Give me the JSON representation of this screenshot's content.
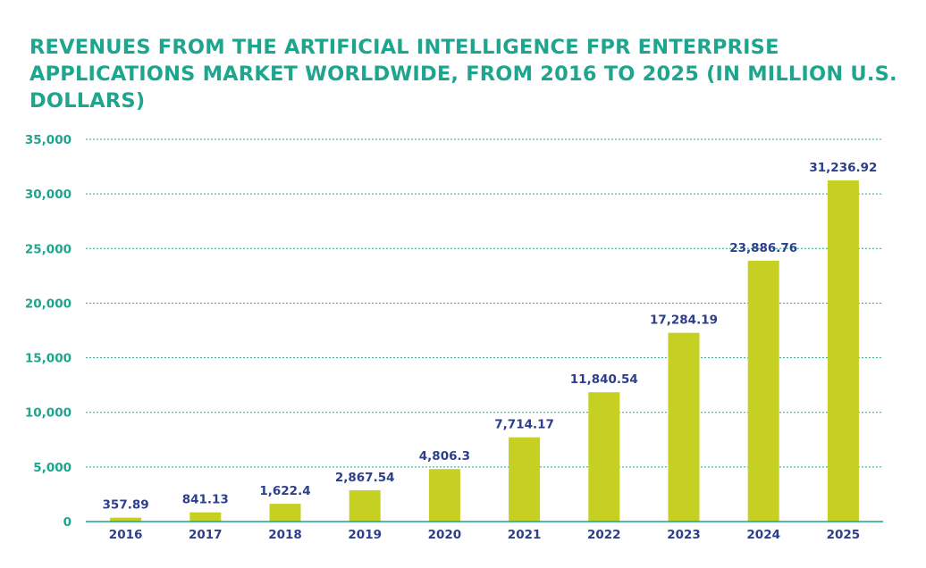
{
  "chart_data": {
    "type": "bar",
    "title": "REVENUES FROM THE ARTIFICIAL INTELLIGENCE FPR ENTERPRISE APPLICATIONS MARKET WORLDWIDE, FROM 2016 TO 2025 (IN MILLION U.S. DOLLARS)",
    "xlabel": "",
    "ylabel": "",
    "categories": [
      "2016",
      "2017",
      "2018",
      "2019",
      "2020",
      "2021",
      "2022",
      "2023",
      "2024",
      "2025"
    ],
    "values": [
      357.89,
      841.13,
      1622.4,
      2867.54,
      4806.3,
      7714.17,
      11840.54,
      17284.19,
      23886.76,
      31236.92
    ],
    "data_labels": [
      "357.89",
      "841.13",
      "1,622.4",
      "2,867.54",
      "4,806.3",
      "7,714.17",
      "11,840.54",
      "17,284.19",
      "23,886.76",
      "31,236.92"
    ],
    "yticks": [
      0,
      5000,
      10000,
      15000,
      20000,
      25000,
      30000,
      35000
    ],
    "ytick_labels": [
      "0",
      "5,000",
      "10,000",
      "15,000",
      "20,000",
      "25,000",
      "30,000",
      "35,000"
    ],
    "ylim": [
      0,
      35000
    ],
    "grid": true,
    "colors": {
      "bar": "#c5d022",
      "title": "#1ea58e",
      "ytick": "#1ea58e",
      "xtick": "#2d3f8a",
      "data_label": "#2d3f8a",
      "grid": "#1ea58e",
      "axis": "#1ea58e"
    }
  }
}
